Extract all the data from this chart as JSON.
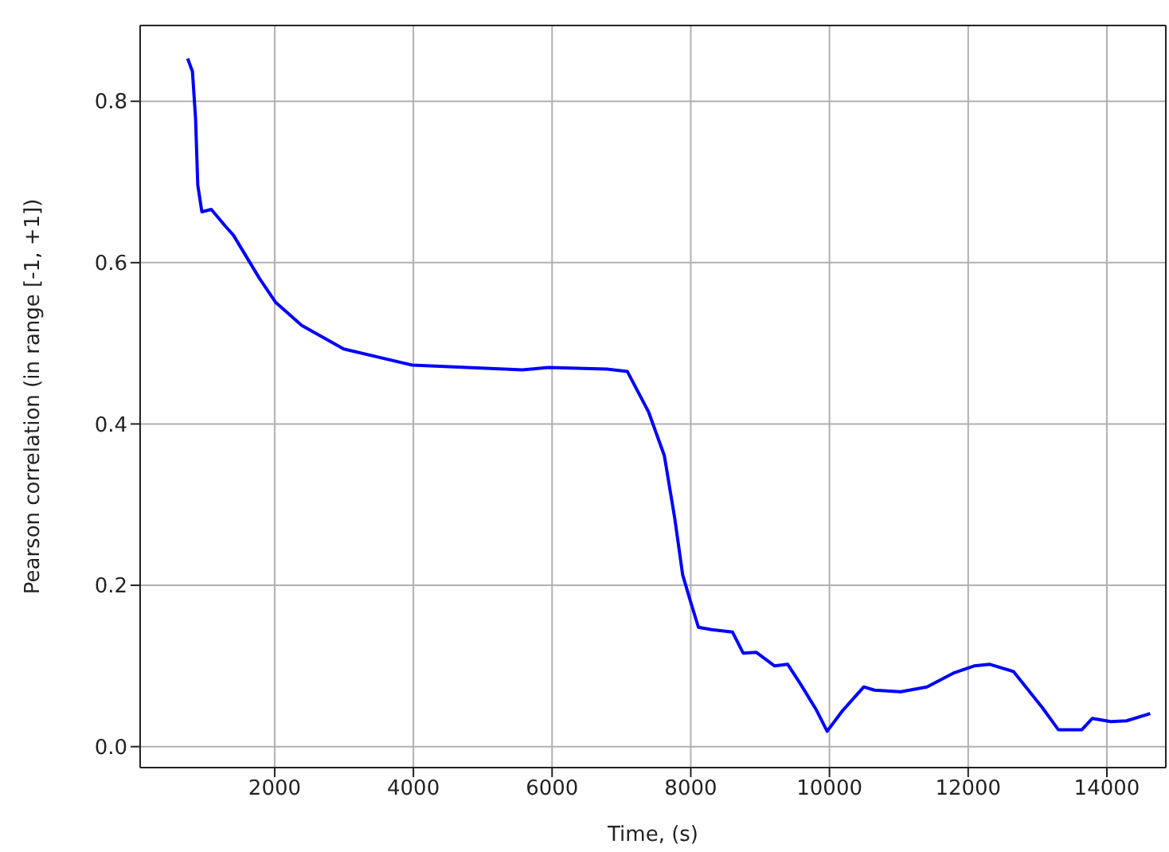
{
  "chart_data": {
    "type": "line",
    "xlabel": "Time, (s)",
    "ylabel": "Pearson correlation (in range [-1, +1])",
    "xlim": [
      60,
      14850
    ],
    "ylim": [
      -0.026,
      0.894
    ],
    "xticks": [
      2000,
      4000,
      6000,
      8000,
      10000,
      12000,
      14000
    ],
    "yticks": [
      {
        "value": 0,
        "label": "0.0"
      },
      {
        "value": 0.2,
        "label": "0.2"
      },
      {
        "value": 0.4,
        "label": "0.4"
      },
      {
        "value": 0.6,
        "label": "0.6"
      },
      {
        "value": 0.8,
        "label": "0.8"
      }
    ],
    "grid": true,
    "legend": false,
    "marker": "none",
    "line_style": "solid",
    "series": [
      {
        "color": "#0000ff",
        "x": [
          745,
          814,
          859,
          891,
          950,
          1086,
          1291,
          1405,
          1784,
          2011,
          2391,
          2995,
          3982,
          5573,
          5950,
          6784,
          7086,
          7391,
          7618,
          7769,
          7883,
          7996,
          8110,
          8300,
          8602,
          8755,
          8943,
          9209,
          9398,
          9587,
          9814,
          9966,
          10193,
          10495,
          10648,
          11027,
          11405,
          11784,
          12086,
          12314,
          12655,
          13072,
          13300,
          13640,
          13791,
          14057,
          14284,
          14625
        ],
        "values": [
          0.853,
          0.837,
          0.779,
          0.696,
          0.663,
          0.666,
          0.645,
          0.634,
          0.58,
          0.551,
          0.522,
          0.493,
          0.473,
          0.467,
          0.47,
          0.468,
          0.465,
          0.415,
          0.361,
          0.283,
          0.213,
          0.18,
          0.148,
          0.145,
          0.142,
          0.116,
          0.117,
          0.1,
          0.102,
          0.077,
          0.045,
          0.019,
          0.045,
          0.074,
          0.07,
          0.068,
          0.074,
          0.091,
          0.1,
          0.102,
          0.093,
          0.048,
          0.021,
          0.021,
          0.035,
          0.031,
          0.032,
          0.041
        ]
      }
    ]
  }
}
